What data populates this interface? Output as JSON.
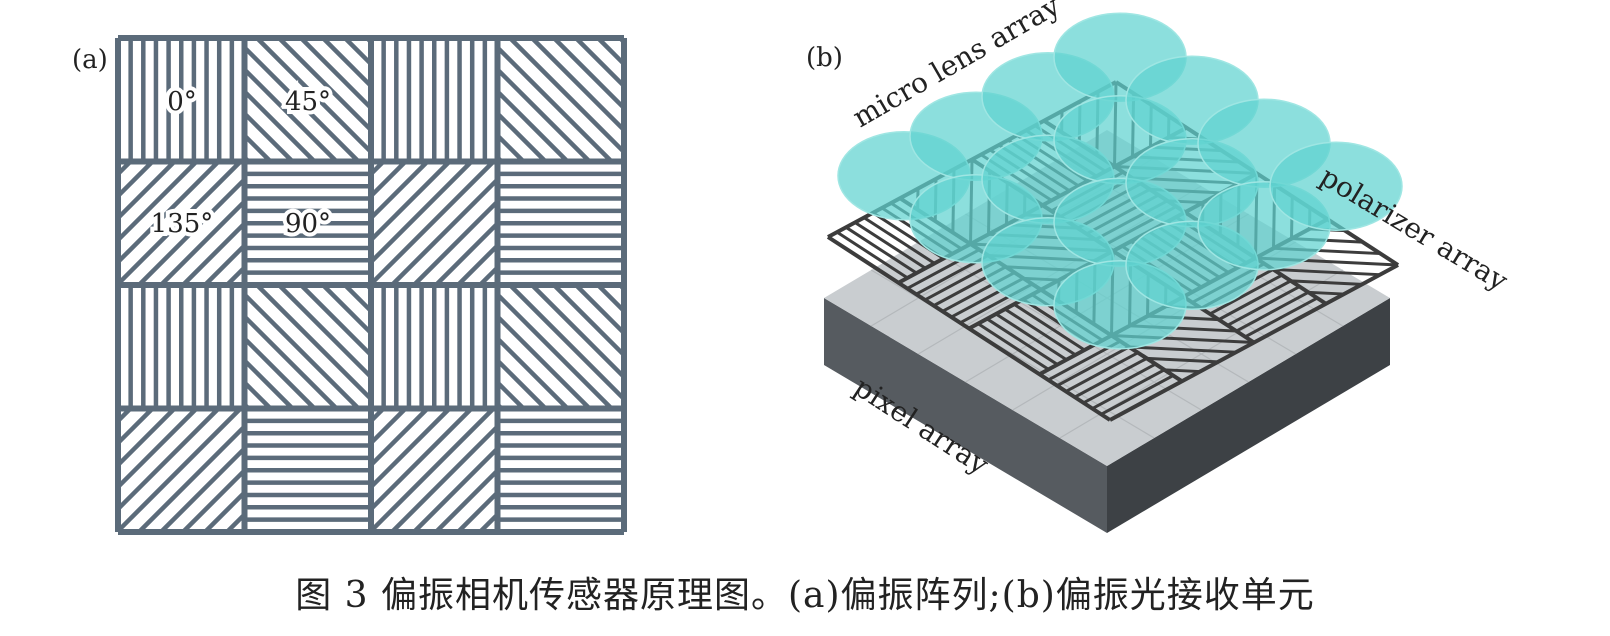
{
  "panel_a": {
    "label": "(a)",
    "angle_labels": [
      "0°",
      "45°",
      "135°",
      "90°"
    ],
    "pattern_grid": [
      [
        "vertical",
        "diag-down",
        "vertical",
        "diag-down"
      ],
      [
        "diag-up",
        "horizontal",
        "diag-up",
        "horizontal"
      ],
      [
        "vertical",
        "diag-down",
        "vertical",
        "diag-down"
      ],
      [
        "diag-up",
        "horizontal",
        "diag-up",
        "horizontal"
      ]
    ],
    "line_color": "#5b6b7a"
  },
  "panel_b": {
    "label": "(b)",
    "labels": {
      "micro_lens": "micro lens array",
      "polarizer": "polarizer array",
      "pixel": "pixel array"
    },
    "colors": {
      "lens": "#5fd3d0",
      "grid": "#3c3c3c",
      "sensor_top": "#c9cdd0",
      "sensor_side_left": "#5a5f63",
      "sensor_side_right": "#3f4346"
    }
  },
  "caption": "图 3   偏振相机传感器原理图。(a)偏振阵列;(b)偏振光接收单元"
}
